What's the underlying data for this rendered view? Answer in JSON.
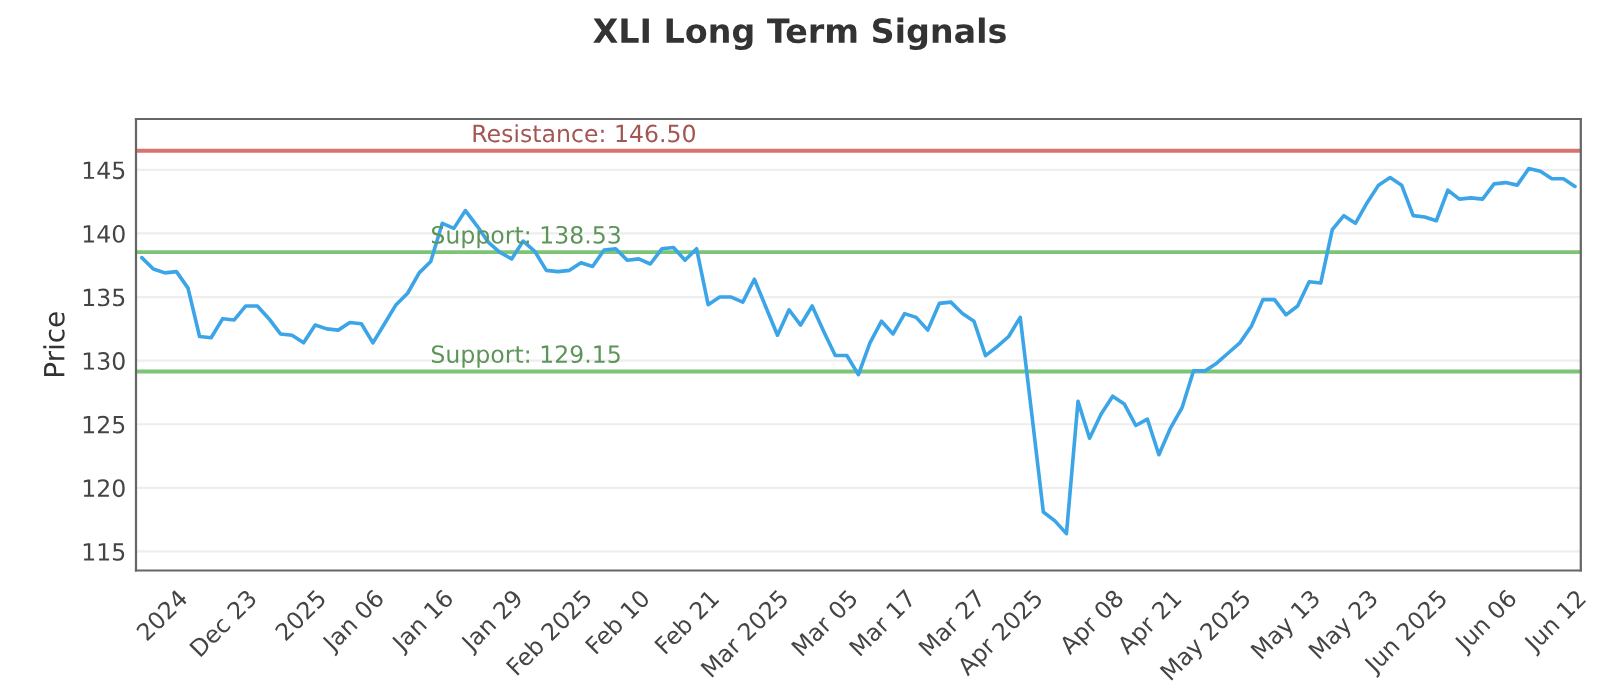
{
  "chart_data": {
    "type": "line",
    "title": "XLI Long Term Signals",
    "ylabel": "Price",
    "categories": [
      null,
      null,
      null,
      "2024",
      null,
      null,
      null,
      null,
      null,
      "Dec 23",
      null,
      null,
      null,
      null,
      null,
      "2025",
      null,
      null,
      null,
      null,
      "Jan 06",
      null,
      null,
      null,
      null,
      null,
      "Jan 16",
      null,
      null,
      null,
      null,
      null,
      "Jan 29",
      null,
      null,
      null,
      null,
      null,
      "Feb 2025",
      null,
      null,
      null,
      null,
      "Feb 10",
      null,
      null,
      null,
      null,
      null,
      "Feb 21",
      null,
      null,
      null,
      null,
      null,
      "Mar 2025",
      null,
      null,
      null,
      null,
      null,
      "Mar 05",
      null,
      null,
      null,
      null,
      "Mar 17",
      null,
      null,
      null,
      null,
      null,
      "Mar 27",
      null,
      null,
      null,
      null,
      "Apr 2025",
      null,
      null,
      null,
      null,
      null,
      null,
      "Apr 08",
      null,
      null,
      null,
      null,
      "Apr 21",
      null,
      null,
      null,
      null,
      null,
      "May 2025",
      null,
      null,
      null,
      null,
      null,
      "May 13",
      null,
      null,
      null,
      null,
      "May 23",
      null,
      null,
      null,
      null,
      null,
      "Jun 2025",
      null,
      null,
      null,
      null,
      null,
      "Jun 06",
      null,
      null,
      null,
      null,
      null,
      "Jun 12"
    ],
    "series": [
      {
        "color": "#3ba5e8",
        "values": [
          138.1,
          137.2,
          136.9,
          137.0,
          135.7,
          131.9,
          131.8,
          133.3,
          133.2,
          134.3,
          134.3,
          133.3,
          132.1,
          132.0,
          131.4,
          132.8,
          132.5,
          132.4,
          133.0,
          132.9,
          131.4,
          132.9,
          134.4,
          135.3,
          136.9,
          137.8,
          140.8,
          140.4,
          141.8,
          140.6,
          139.3,
          138.5,
          138.0,
          139.4,
          138.6,
          137.1,
          137.0,
          137.1,
          137.7,
          137.4,
          138.7,
          138.8,
          137.9,
          138.0,
          137.6,
          138.8,
          138.9,
          137.9,
          138.8,
          134.4,
          135.0,
          135.0,
          134.6,
          136.4,
          134.2,
          132.0,
          134.0,
          132.8,
          134.3,
          132.3,
          130.4,
          130.4,
          128.9,
          131.4,
          133.1,
          132.1,
          133.7,
          133.4,
          132.4,
          134.5,
          134.6,
          133.7,
          133.1,
          130.4,
          131.1,
          131.9,
          133.4,
          125.8,
          118.1,
          117.4,
          116.4,
          126.8,
          123.9,
          125.8,
          127.2,
          126.6,
          124.9,
          125.4,
          122.6,
          124.7,
          126.3,
          129.2,
          129.2,
          129.8,
          130.6,
          131.4,
          132.7,
          134.8,
          134.8,
          133.6,
          134.3,
          136.2,
          136.1,
          140.3,
          141.4,
          140.8,
          142.4,
          143.8,
          144.4,
          143.8,
          141.4,
          141.3,
          141.0,
          143.4,
          142.7,
          142.8,
          142.7,
          143.9,
          144.0,
          143.8,
          145.1,
          144.9,
          144.3,
          144.3,
          143.7
        ]
      }
    ],
    "ylim": [
      113.5,
      149
    ],
    "yticks": [
      115,
      120,
      125,
      130,
      135,
      140,
      145
    ],
    "grid": "y",
    "legend": false,
    "marker": "none",
    "line_style": "solid",
    "ref_lines": [
      {
        "axis": "y",
        "value": 146.5,
        "label": "Resistance: 146.50",
        "color": "#d9736f"
      },
      {
        "axis": "y",
        "value": 138.53,
        "label": "Support: 138.53",
        "color": "#7cc576"
      },
      {
        "axis": "y",
        "value": 129.15,
        "label": "Support: 129.15",
        "color": "#7cc576"
      }
    ]
  }
}
